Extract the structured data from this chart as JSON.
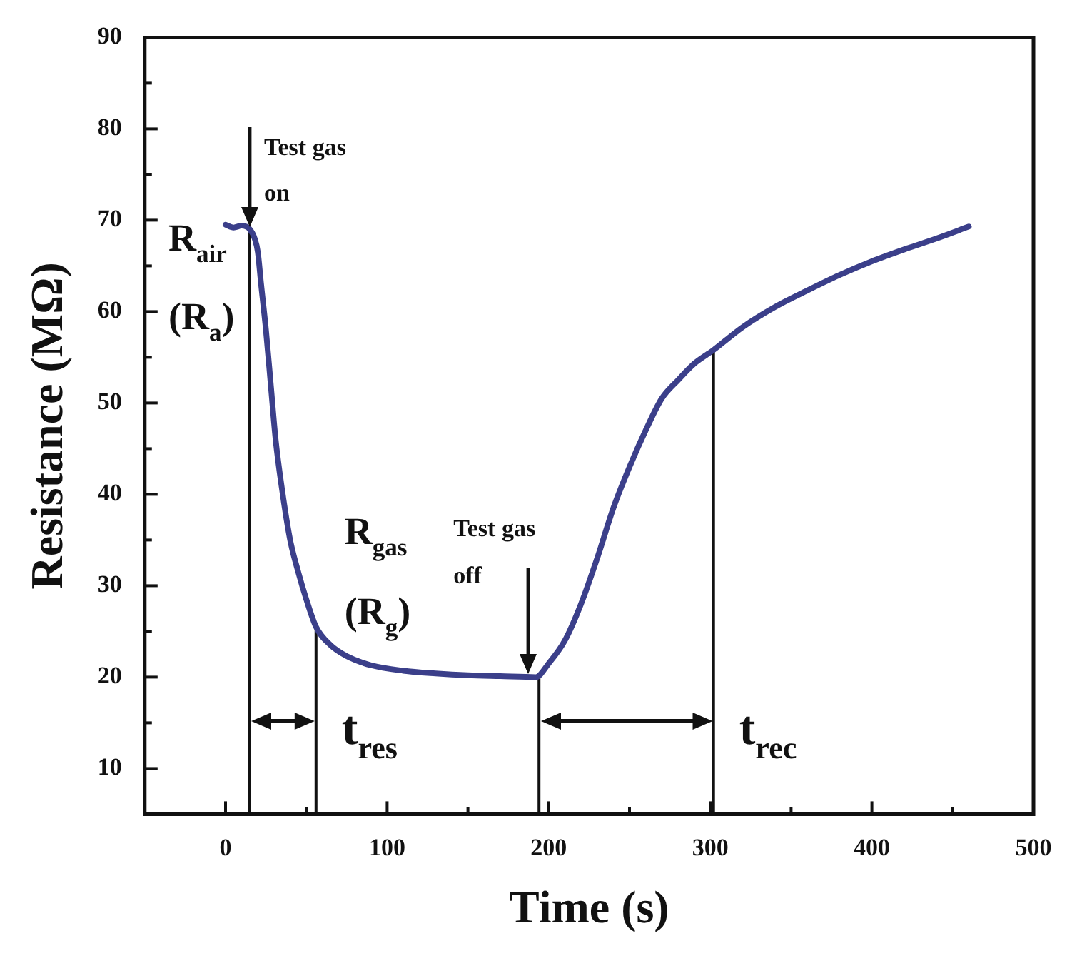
{
  "chart_data": {
    "type": "line",
    "xlabel": "Time (s)",
    "ylabel": "Resistance (MΩ)",
    "xlim": [
      -50,
      500
    ],
    "xticks": [
      0,
      {
        "value": 50,
        "label": null
      },
      100,
      {
        "value": 150,
        "label": null
      },
      200,
      {
        "value": 250,
        "label": null
      },
      300,
      {
        "value": 350,
        "label": null
      },
      400,
      {
        "value": 450,
        "label": null
      },
      500
    ],
    "ylim": [
      5,
      90
    ],
    "yticks": [
      10,
      {
        "value": 15,
        "label": null
      },
      20,
      {
        "value": 25,
        "label": null
      },
      30,
      {
        "value": 35,
        "label": null
      },
      40,
      {
        "value": 45,
        "label": null
      },
      50,
      {
        "value": 55,
        "label": null
      },
      60,
      {
        "value": 65,
        "label": null
      },
      70,
      {
        "value": 75,
        "label": null
      },
      80,
      {
        "value": 85,
        "label": null
      },
      90
    ],
    "grid": false,
    "legend": false,
    "marker": "none",
    "line_style": "solid",
    "series": [
      {
        "color": "#3b3f8a",
        "x": [
          0,
          5,
          10,
          15,
          18,
          20,
          22,
          25,
          28,
          31,
          35,
          40,
          45,
          50,
          56,
          65,
          75,
          90,
          110,
          130,
          150,
          170,
          192,
          200,
          210,
          220,
          230,
          240,
          250,
          260,
          270,
          280,
          290,
          302,
          320,
          340,
          360,
          380,
          400,
          420,
          440,
          460
        ],
        "values": [
          69.5,
          69.2,
          69.4,
          69.0,
          68,
          66.5,
          63,
          58,
          52,
          46,
          40.5,
          35,
          31.5,
          28.5,
          25.5,
          23.5,
          22.3,
          21.3,
          20.7,
          20.4,
          20.2,
          20.1,
          20.0,
          21.5,
          24,
          28,
          33,
          38.5,
          43,
          47,
          50.5,
          52.5,
          54.3,
          55.8,
          58.3,
          60.5,
          62.3,
          64,
          65.5,
          66.8,
          68,
          69.3
        ]
      },
      {
        "type": "line",
        "color": "#111111",
        "x": [
          15,
          15
        ],
        "values": [
          5,
          69
        ]
      },
      {
        "type": "line",
        "color": "#111111",
        "x": [
          56,
          56
        ],
        "values": [
          5,
          25.5
        ]
      },
      {
        "type": "line",
        "color": "#111111",
        "x": [
          194,
          194
        ],
        "values": [
          5,
          20.1
        ]
      },
      {
        "type": "line",
        "color": "#111111",
        "x": [
          302,
          302
        ],
        "values": [
          5,
          55.8
        ]
      }
    ],
    "annotations": [
      "Test gas on",
      {
        "text": "R$_{air}$ (R$_{a}$)",
        "x": 0,
        "y": 69.5
      },
      {
        "text": "R$_{gas}$ (R$_{g}$)",
        "x": 56,
        "y": 25.5
      },
      "Test gas off",
      "t$_{res}$",
      "t$_{rec}$"
    ]
  }
}
